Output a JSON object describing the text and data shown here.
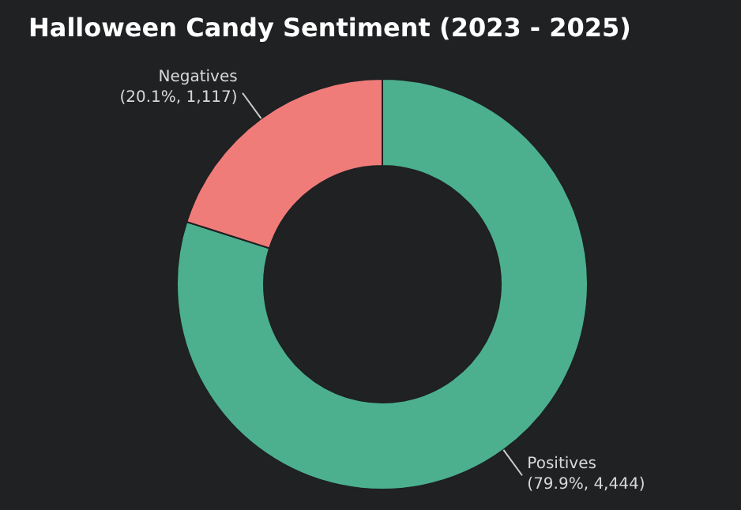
{
  "chart_data": {
    "type": "donut",
    "title": "Halloween Candy Sentiment (2023 - 2025)",
    "categories": [
      "Positives",
      "Negatives"
    ],
    "values": [
      4444,
      1117
    ],
    "colors": [
      "#4cb08f",
      "#f07c79"
    ],
    "value_labels": [
      "(79.9%, 4,444)",
      "(20.1%, 1,117)"
    ],
    "legend": false
  }
}
